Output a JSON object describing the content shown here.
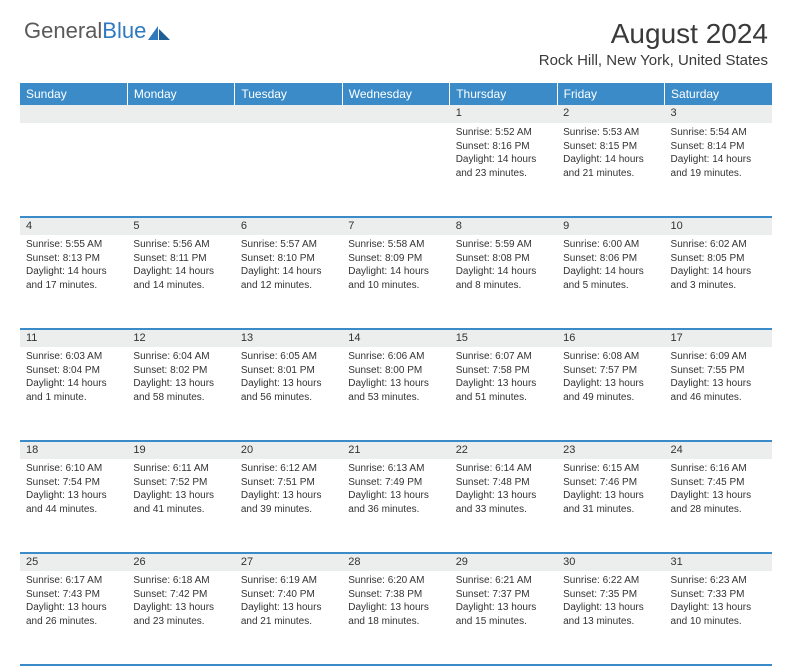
{
  "brand": {
    "part1": "General",
    "part2": "Blue"
  },
  "title": "August 2024",
  "location": "Rock Hill, New York, United States",
  "colors": {
    "header_bg": "#3b8bc9",
    "header_text": "#ffffff",
    "daynum_bg": "#eceded",
    "border": "#3b8bc9",
    "body_text": "#333333",
    "page_bg": "#ffffff",
    "logo_gray": "#5a5a5a",
    "logo_blue": "#2f7abf"
  },
  "day_headers": [
    "Sunday",
    "Monday",
    "Tuesday",
    "Wednesday",
    "Thursday",
    "Friday",
    "Saturday"
  ],
  "weeks": [
    [
      {
        "n": "",
        "sr": "",
        "ss": "",
        "dl": ""
      },
      {
        "n": "",
        "sr": "",
        "ss": "",
        "dl": ""
      },
      {
        "n": "",
        "sr": "",
        "ss": "",
        "dl": ""
      },
      {
        "n": "",
        "sr": "",
        "ss": "",
        "dl": ""
      },
      {
        "n": "1",
        "sr": "Sunrise: 5:52 AM",
        "ss": "Sunset: 8:16 PM",
        "dl": "Daylight: 14 hours and 23 minutes."
      },
      {
        "n": "2",
        "sr": "Sunrise: 5:53 AM",
        "ss": "Sunset: 8:15 PM",
        "dl": "Daylight: 14 hours and 21 minutes."
      },
      {
        "n": "3",
        "sr": "Sunrise: 5:54 AM",
        "ss": "Sunset: 8:14 PM",
        "dl": "Daylight: 14 hours and 19 minutes."
      }
    ],
    [
      {
        "n": "4",
        "sr": "Sunrise: 5:55 AM",
        "ss": "Sunset: 8:13 PM",
        "dl": "Daylight: 14 hours and 17 minutes."
      },
      {
        "n": "5",
        "sr": "Sunrise: 5:56 AM",
        "ss": "Sunset: 8:11 PM",
        "dl": "Daylight: 14 hours and 14 minutes."
      },
      {
        "n": "6",
        "sr": "Sunrise: 5:57 AM",
        "ss": "Sunset: 8:10 PM",
        "dl": "Daylight: 14 hours and 12 minutes."
      },
      {
        "n": "7",
        "sr": "Sunrise: 5:58 AM",
        "ss": "Sunset: 8:09 PM",
        "dl": "Daylight: 14 hours and 10 minutes."
      },
      {
        "n": "8",
        "sr": "Sunrise: 5:59 AM",
        "ss": "Sunset: 8:08 PM",
        "dl": "Daylight: 14 hours and 8 minutes."
      },
      {
        "n": "9",
        "sr": "Sunrise: 6:00 AM",
        "ss": "Sunset: 8:06 PM",
        "dl": "Daylight: 14 hours and 5 minutes."
      },
      {
        "n": "10",
        "sr": "Sunrise: 6:02 AM",
        "ss": "Sunset: 8:05 PM",
        "dl": "Daylight: 14 hours and 3 minutes."
      }
    ],
    [
      {
        "n": "11",
        "sr": "Sunrise: 6:03 AM",
        "ss": "Sunset: 8:04 PM",
        "dl": "Daylight: 14 hours and 1 minute."
      },
      {
        "n": "12",
        "sr": "Sunrise: 6:04 AM",
        "ss": "Sunset: 8:02 PM",
        "dl": "Daylight: 13 hours and 58 minutes."
      },
      {
        "n": "13",
        "sr": "Sunrise: 6:05 AM",
        "ss": "Sunset: 8:01 PM",
        "dl": "Daylight: 13 hours and 56 minutes."
      },
      {
        "n": "14",
        "sr": "Sunrise: 6:06 AM",
        "ss": "Sunset: 8:00 PM",
        "dl": "Daylight: 13 hours and 53 minutes."
      },
      {
        "n": "15",
        "sr": "Sunrise: 6:07 AM",
        "ss": "Sunset: 7:58 PM",
        "dl": "Daylight: 13 hours and 51 minutes."
      },
      {
        "n": "16",
        "sr": "Sunrise: 6:08 AM",
        "ss": "Sunset: 7:57 PM",
        "dl": "Daylight: 13 hours and 49 minutes."
      },
      {
        "n": "17",
        "sr": "Sunrise: 6:09 AM",
        "ss": "Sunset: 7:55 PM",
        "dl": "Daylight: 13 hours and 46 minutes."
      }
    ],
    [
      {
        "n": "18",
        "sr": "Sunrise: 6:10 AM",
        "ss": "Sunset: 7:54 PM",
        "dl": "Daylight: 13 hours and 44 minutes."
      },
      {
        "n": "19",
        "sr": "Sunrise: 6:11 AM",
        "ss": "Sunset: 7:52 PM",
        "dl": "Daylight: 13 hours and 41 minutes."
      },
      {
        "n": "20",
        "sr": "Sunrise: 6:12 AM",
        "ss": "Sunset: 7:51 PM",
        "dl": "Daylight: 13 hours and 39 minutes."
      },
      {
        "n": "21",
        "sr": "Sunrise: 6:13 AM",
        "ss": "Sunset: 7:49 PM",
        "dl": "Daylight: 13 hours and 36 minutes."
      },
      {
        "n": "22",
        "sr": "Sunrise: 6:14 AM",
        "ss": "Sunset: 7:48 PM",
        "dl": "Daylight: 13 hours and 33 minutes."
      },
      {
        "n": "23",
        "sr": "Sunrise: 6:15 AM",
        "ss": "Sunset: 7:46 PM",
        "dl": "Daylight: 13 hours and 31 minutes."
      },
      {
        "n": "24",
        "sr": "Sunrise: 6:16 AM",
        "ss": "Sunset: 7:45 PM",
        "dl": "Daylight: 13 hours and 28 minutes."
      }
    ],
    [
      {
        "n": "25",
        "sr": "Sunrise: 6:17 AM",
        "ss": "Sunset: 7:43 PM",
        "dl": "Daylight: 13 hours and 26 minutes."
      },
      {
        "n": "26",
        "sr": "Sunrise: 6:18 AM",
        "ss": "Sunset: 7:42 PM",
        "dl": "Daylight: 13 hours and 23 minutes."
      },
      {
        "n": "27",
        "sr": "Sunrise: 6:19 AM",
        "ss": "Sunset: 7:40 PM",
        "dl": "Daylight: 13 hours and 21 minutes."
      },
      {
        "n": "28",
        "sr": "Sunrise: 6:20 AM",
        "ss": "Sunset: 7:38 PM",
        "dl": "Daylight: 13 hours and 18 minutes."
      },
      {
        "n": "29",
        "sr": "Sunrise: 6:21 AM",
        "ss": "Sunset: 7:37 PM",
        "dl": "Daylight: 13 hours and 15 minutes."
      },
      {
        "n": "30",
        "sr": "Sunrise: 6:22 AM",
        "ss": "Sunset: 7:35 PM",
        "dl": "Daylight: 13 hours and 13 minutes."
      },
      {
        "n": "31",
        "sr": "Sunrise: 6:23 AM",
        "ss": "Sunset: 7:33 PM",
        "dl": "Daylight: 13 hours and 10 minutes."
      }
    ]
  ]
}
